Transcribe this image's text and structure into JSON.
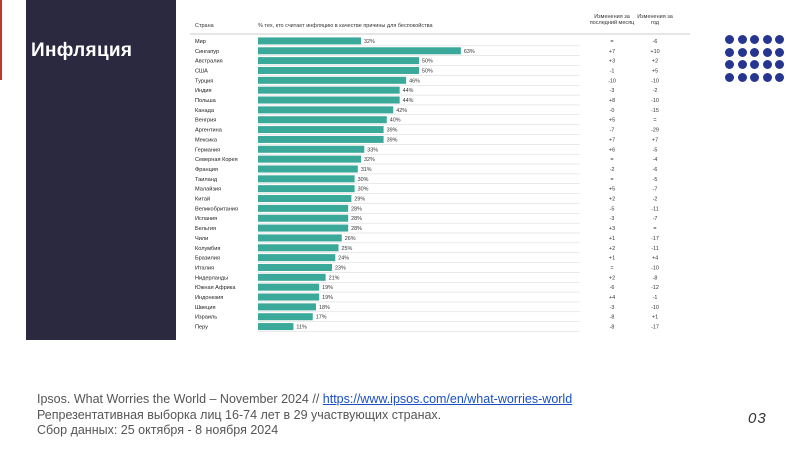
{
  "slide": {
    "title": "Инфляция",
    "page_number": "03",
    "accent_color": "#2b2940",
    "dots_color": "#26358f"
  },
  "footer": {
    "line1_prefix": "Ipsos. What Worries the World – November 2024 // ",
    "line1_link": "https://www.ipsos.com/en/what-worries-world",
    "line2": "Репрезентативная выборка лиц 16-74 лет в 29 участвующих странах.",
    "line3": "Сбор данных: 25 октября - 8 ноября 2024"
  },
  "chart_data": {
    "type": "bar",
    "orientation": "horizontal",
    "bar_color": "#3aa99a",
    "headers": {
      "country": "Страна",
      "value": "% тех, кто считает инфляцию в качестве причины для беспокойства",
      "change_month": "Изменения за последний месяц",
      "change_year": "Изменения за год"
    },
    "categories": [
      "Мир",
      "Сингапур",
      "Австралия",
      "США",
      "Турция",
      "Индия",
      "Польша",
      "Канада",
      "Венгрия",
      "Аргентина",
      "Мексика",
      "Германия",
      "Северная Корея",
      "Франция",
      "Таиланд",
      "Малайзия",
      "Китай",
      "Великобритания",
      "Испания",
      "Бельгия",
      "Чили",
      "Колумбия",
      "Бразилия",
      "Италия",
      "Нидерланды",
      "Южная Африка",
      "Индонезия",
      "Швеция",
      "Израиль",
      "Перу"
    ],
    "values": [
      32,
      63,
      50,
      50,
      46,
      44,
      44,
      42,
      40,
      39,
      39,
      33,
      32,
      31,
      30,
      30,
      29,
      28,
      28,
      28,
      26,
      25,
      24,
      23,
      21,
      19,
      19,
      18,
      17,
      11
    ],
    "value_labels": [
      "32%",
      "63%",
      "50%",
      "50%",
      "46%",
      "44%",
      "44%",
      "42%",
      "40%",
      "39%",
      "39%",
      "33%",
      "32%",
      "31%",
      "30%",
      "30%",
      "29%",
      "28%",
      "28%",
      "28%",
      "26%",
      "25%",
      "24%",
      "23%",
      "21%",
      "19%",
      "19%",
      "18%",
      "17%",
      "11%"
    ],
    "change_month": [
      "=",
      "+7",
      "+3",
      "-1",
      "-10",
      "-3",
      "+8",
      "-0",
      "+5",
      "-7",
      "+7",
      "+6",
      "=",
      "-2",
      "=",
      "+5",
      "+2",
      "-5",
      "-3",
      "+3",
      "+1",
      "+2",
      "+1",
      "=",
      "+2",
      "-6",
      "+4",
      "-3",
      "-8",
      "-8"
    ],
    "change_year": [
      "-6",
      "+10",
      "+2",
      "+5",
      "-10",
      "-2",
      "-10",
      "-15",
      "=",
      "-29",
      "+7",
      "-5",
      "-4",
      "-6",
      "-5",
      "-7",
      "-2",
      "-11",
      "-7",
      "=",
      "-17",
      "-11",
      "+4",
      "-10",
      "-8",
      "-12",
      "-1",
      "-10",
      "+1",
      "-17"
    ],
    "xlim": [
      0,
      100
    ]
  }
}
